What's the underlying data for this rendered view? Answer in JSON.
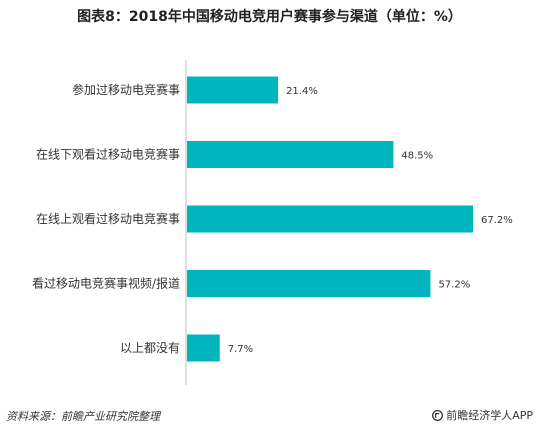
{
  "chart_data": {
    "type": "bar",
    "orientation": "horizontal",
    "title": "图表8：2018年中国移动电竞用户赛事参与渠道（单位：%）",
    "categories": [
      "参加过移动电竞赛事",
      "在线下观看过移动电竞赛事",
      "在线上观看过移动电竞赛事",
      "看过移动电竞赛事视频/报道",
      "以上都没有"
    ],
    "values": [
      21.4,
      48.5,
      67.2,
      57.2,
      7.7
    ],
    "value_labels": [
      "21.4%",
      "48.5%",
      "67.2%",
      "57.2%",
      "7.7%"
    ],
    "xlim": [
      0,
      67.2
    ],
    "grid": false,
    "bar_color": "#00b5bd"
  },
  "footer": {
    "source": "资料来源：前瞻产业研究院整理",
    "brand": "前瞻经济学人APP"
  },
  "brand_icon": "qianzhan-logo-icon"
}
